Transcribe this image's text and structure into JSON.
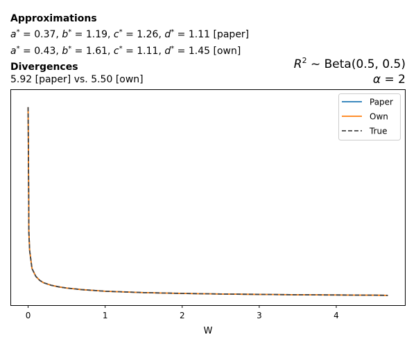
{
  "annotations": {
    "approx_title": "Approximations",
    "approx_paper": {
      "a": "0.37",
      "b": "1.19",
      "c": "1.26",
      "d": "1.11",
      "tag": "[paper]"
    },
    "approx_own": {
      "a": "0.43",
      "b": "1.61",
      "c": "1.11",
      "d": "1.45",
      "tag": "[own]"
    },
    "div_title": "Divergences",
    "div_text": "5.92 [paper] vs. 5.50 [own]",
    "dist_prefix": "R",
    "dist_sup": "2",
    "dist_tilde": " ~ ",
    "dist_text": "Beta(0.5, 0.5)",
    "alpha_symbol": "α",
    "alpha_eq": " = ",
    "alpha_value": "2"
  },
  "chart_data": {
    "type": "line",
    "xlabel": "W",
    "ylabel": "",
    "xlim": [
      -0.23,
      4.9
    ],
    "ylim": [
      0,
      1
    ],
    "xticks": [
      0,
      1,
      2,
      3,
      4
    ],
    "xtick_labels": [
      "0",
      "1",
      "2",
      "3",
      "4"
    ],
    "yticks_shown": false,
    "grid": false,
    "legend_position": "top-right",
    "series": [
      {
        "name": "Paper",
        "color": "#1f77b4",
        "dash": "solid",
        "x": [
          0.0,
          0.01,
          0.02,
          0.05,
          0.1,
          0.15,
          0.2,
          0.3,
          0.4,
          0.5,
          0.7,
          1.0,
          1.5,
          2.0,
          2.5,
          3.0,
          3.5,
          4.0,
          4.5,
          4.67
        ],
        "y": [
          0.955,
          0.32,
          0.23,
          0.14,
          0.1,
          0.08,
          0.068,
          0.055,
          0.047,
          0.041,
          0.033,
          0.025,
          0.018,
          0.014,
          0.011,
          0.009,
          0.007,
          0.006,
          0.005,
          0.004
        ]
      },
      {
        "name": "Own",
        "color": "#ff7f0e",
        "dash": "solid",
        "x": [
          0.0,
          0.01,
          0.02,
          0.05,
          0.1,
          0.15,
          0.2,
          0.3,
          0.4,
          0.5,
          0.7,
          1.0,
          1.5,
          2.0,
          2.5,
          3.0,
          3.5,
          4.0,
          4.5,
          4.67
        ],
        "y": [
          0.955,
          0.32,
          0.23,
          0.14,
          0.1,
          0.08,
          0.068,
          0.055,
          0.047,
          0.041,
          0.033,
          0.025,
          0.018,
          0.014,
          0.011,
          0.009,
          0.007,
          0.006,
          0.005,
          0.004
        ]
      },
      {
        "name": "True",
        "color": "#444444",
        "dash": "dashed",
        "x": [
          0.0,
          0.01,
          0.02,
          0.05,
          0.1,
          0.15,
          0.2,
          0.3,
          0.4,
          0.5,
          0.7,
          1.0,
          1.5,
          2.0,
          2.5,
          3.0,
          3.5,
          4.0,
          4.5,
          4.67
        ],
        "y": [
          0.955,
          0.32,
          0.23,
          0.14,
          0.1,
          0.08,
          0.068,
          0.055,
          0.047,
          0.041,
          0.033,
          0.025,
          0.018,
          0.014,
          0.011,
          0.009,
          0.007,
          0.006,
          0.005,
          0.004
        ]
      }
    ]
  }
}
